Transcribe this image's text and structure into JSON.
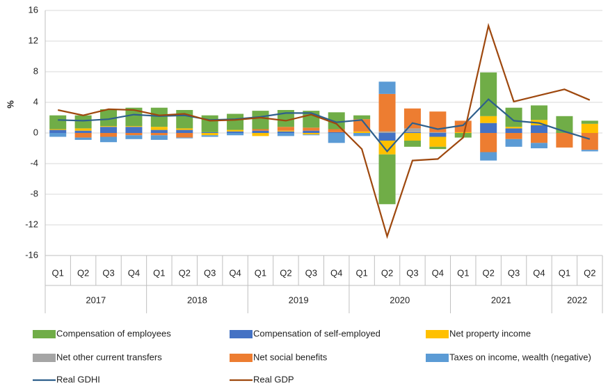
{
  "chart_data": {
    "type": "bar",
    "y_axis_label": "%",
    "categories": [
      "Q1",
      "Q2",
      "Q3",
      "Q4",
      "Q1",
      "Q2",
      "Q3",
      "Q4",
      "Q1",
      "Q2",
      "Q3",
      "Q4",
      "Q1",
      "Q2",
      "Q3",
      "Q4",
      "Q1",
      "Q2",
      "Q3",
      "Q4",
      "Q1",
      "Q2"
    ],
    "years": [
      "2017",
      "2018",
      "2019",
      "2020",
      "2021",
      "2022"
    ],
    "ylim": [
      -16,
      16
    ],
    "yticks": [
      -16,
      -12,
      -8,
      -4,
      0,
      4,
      8,
      12,
      16
    ],
    "grid": true,
    "stacked": true,
    "series": [
      {
        "name": "Compensation of employees",
        "color": "#70ad47",
        "values": [
          1.8,
          1.7,
          2.2,
          2.4,
          2.5,
          2.4,
          2.2,
          2.1,
          2.4,
          2.2,
          2.2,
          2.2,
          0.5,
          -6.5,
          -0.8,
          -0.3,
          -0.6,
          5.7,
          2.5,
          1.9,
          2.2,
          0.4
        ]
      },
      {
        "name": "Compensation of self-employed",
        "color": "#4472c4",
        "values": [
          0.4,
          0.3,
          0.8,
          0.8,
          0.4,
          0.4,
          0.1,
          0.2,
          0.3,
          0.2,
          0.3,
          0.1,
          0,
          -1.0,
          0.1,
          -0.5,
          0,
          1.3,
          0.6,
          1.0,
          0,
          0
        ]
      },
      {
        "name": "Net property income",
        "color": "#ffc000",
        "values": [
          0.1,
          0.3,
          0.1,
          0.1,
          0.4,
          0.2,
          -0.3,
          0.2,
          -0.4,
          0.1,
          -0.2,
          0,
          0.2,
          -1.8,
          -1.0,
          -1.3,
          0.1,
          0.9,
          0.2,
          0.7,
          0,
          1.2
        ]
      },
      {
        "name": "Net other current transfers",
        "color": "#a5a5a5",
        "values": [
          0,
          0,
          0,
          0,
          0,
          0,
          0,
          0,
          0,
          0,
          0,
          0,
          0,
          0.2,
          0.5,
          0.1,
          0,
          0,
          0,
          0,
          0,
          0
        ]
      },
      {
        "name": "Net social benefits",
        "color": "#ed7d31",
        "values": [
          0,
          -0.6,
          -0.5,
          -0.3,
          -0.3,
          -0.6,
          0,
          0,
          0.2,
          0.5,
          0.4,
          0.4,
          1.6,
          4.9,
          2.6,
          2.7,
          1.5,
          -2.5,
          -0.8,
          -1.3,
          -1.9,
          -2.2
        ]
      },
      {
        "name": "Taxes on income, wealth (negative)",
        "color": "#5b9bd5",
        "values": [
          -0.5,
          -0.3,
          -0.7,
          -0.5,
          -0.6,
          -0.1,
          -0.2,
          -0.3,
          0,
          -0.4,
          -0.1,
          -1.3,
          -0.4,
          1.6,
          0,
          0,
          0,
          -1.1,
          -1.0,
          -0.7,
          0,
          -0.2
        ]
      }
    ],
    "lines": [
      {
        "name": "Real GDHI",
        "color": "#2e5f8c",
        "values": [
          1.7,
          1.6,
          1.8,
          2.4,
          2.2,
          2.3,
          1.7,
          1.8,
          2.1,
          2.6,
          2.6,
          1.4,
          1.7,
          -2.4,
          1.3,
          0.5,
          1.0,
          4.4,
          1.6,
          1.3,
          0.2,
          -0.8
        ]
      },
      {
        "name": "Real GDP",
        "color": "#9e480e",
        "values": [
          3.0,
          2.3,
          3.1,
          3.0,
          2.3,
          2.5,
          1.6,
          1.7,
          2.0,
          1.6,
          2.4,
          1.2,
          -2.1,
          -13.5,
          -3.6,
          -3.4,
          -0.6,
          14.0,
          4.1,
          4.9,
          5.7,
          4.3
        ]
      }
    ]
  }
}
